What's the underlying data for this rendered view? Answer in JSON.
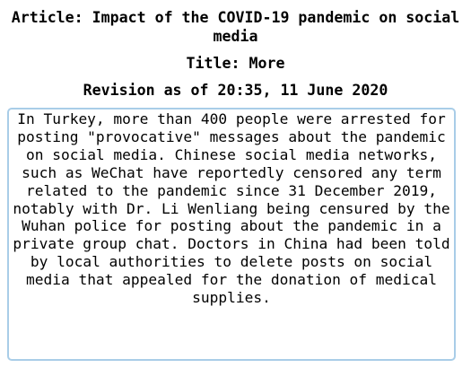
{
  "article": {
    "title": "Article: Impact of the COVID-19 pandemic on social media"
  },
  "revision": {
    "title": "Title: More",
    "timestamp": "Revision as of 20:35, 11 June 2020"
  },
  "content": {
    "text": "In Turkey, more than 400 people were arrested for posting \"provocative\" messages about the pandemic on social media. Chinese social media networks, such as WeChat have reportedly censored any term related to the pandemic since 31 December 2019, notably with Dr. Li Wenliang being censured by the Wuhan police for posting about the pandemic in a private group chat. Doctors in China had been told by local authorities to delete posts on social media that appealed for the donation of medical supplies."
  },
  "colors": {
    "box_border": "#a9cde8",
    "text": "#000000",
    "background": "#ffffff"
  }
}
